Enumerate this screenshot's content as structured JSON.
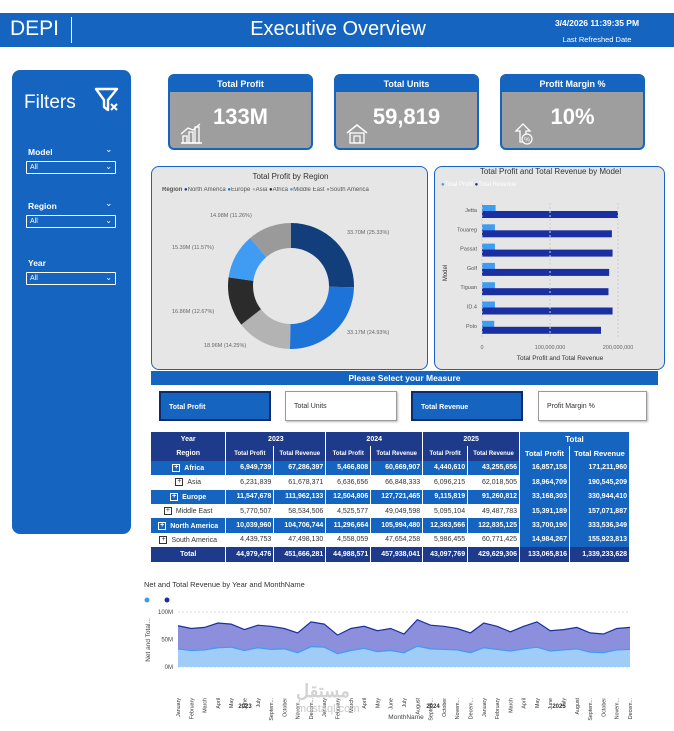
{
  "header": {
    "brand": "DEPI",
    "title": "Executive Overview",
    "refresh_time": "3/4/2026 11:39:35 PM",
    "refresh_label": "Last Refreshed Date"
  },
  "filters": {
    "title": "Filters",
    "items": [
      {
        "label": "Model",
        "value": "All"
      },
      {
        "label": "Region",
        "value": "All"
      },
      {
        "label": "Year",
        "value": "All"
      }
    ]
  },
  "kpis": [
    {
      "label": "Total Profit",
      "value": "133M",
      "icon": "bar-chart-icon"
    },
    {
      "label": "Total Units",
      "value": "59,819",
      "icon": "house-icon"
    },
    {
      "label": "Profit Margin %",
      "value": "10%",
      "icon": "growth-percent-icon"
    }
  ],
  "donut": {
    "title": "Total Profit by Region",
    "legend_title": "Region",
    "slice_labels": [
      "33.70M (25.33%)",
      "33.17M (24.93%)",
      "18.96M (14.25%)",
      "16.86M (12.67%)",
      "15.39M (11.57%)",
      "14.98M (11.26%)"
    ]
  },
  "bars": {
    "title": "Total Profit and Total Revenue by Model",
    "y_axis_label": "Model",
    "x_axis_label": "Total Profit and Total Revenue",
    "x_ticks": [
      "0",
      "100,000,000",
      "200,000,000"
    ],
    "legend": [
      "Total Profit",
      "Total Revenue"
    ]
  },
  "measure": {
    "title": "Please Select your Measure",
    "buttons": [
      {
        "label": "Total Profit",
        "selected": true
      },
      {
        "label": "Total Units",
        "selected": false
      },
      {
        "label": "Total Revenue",
        "selected": true
      },
      {
        "label": "Profit Margin %",
        "selected": false
      }
    ]
  },
  "matrix": {
    "col_year": "Year",
    "col_region": "Region",
    "years": [
      "2023",
      "2024",
      "2025"
    ],
    "total_label": "Total",
    "sub_headers": [
      "Total Profit",
      "Total Revenue"
    ],
    "rows": [
      {
        "region": "Africa",
        "v": [
          "6,949,739",
          "67,286,397",
          "5,466,808",
          "60,669,907",
          "4,440,610",
          "43,255,656",
          "16,857,158",
          "171,211,960"
        ]
      },
      {
        "region": "Asia",
        "v": [
          "6,231,839",
          "61,678,371",
          "6,636,656",
          "66,848,333",
          "6,096,215",
          "62,018,505",
          "18,964,709",
          "190,545,209"
        ]
      },
      {
        "region": "Europe",
        "v": [
          "11,547,678",
          "111,962,133",
          "12,504,806",
          "127,721,465",
          "9,115,819",
          "91,260,812",
          "33,168,303",
          "330,944,410"
        ]
      },
      {
        "region": "Middle East",
        "v": [
          "5,770,507",
          "58,534,506",
          "4,525,577",
          "49,049,598",
          "5,095,104",
          "49,487,783",
          "15,391,189",
          "157,071,887"
        ]
      },
      {
        "region": "North America",
        "v": [
          "10,039,960",
          "104,706,744",
          "11,296,664",
          "105,994,480",
          "12,363,566",
          "122,835,125",
          "33,700,190",
          "333,536,349"
        ]
      },
      {
        "region": "South America",
        "v": [
          "4,439,753",
          "47,498,130",
          "4,558,059",
          "47,654,258",
          "5,986,455",
          "60,771,425",
          "14,984,267",
          "155,923,813"
        ]
      }
    ],
    "total_row": {
      "label": "Total",
      "v": [
        "44,979,476",
        "451,666,281",
        "44,988,571",
        "457,938,041",
        "43,097,769",
        "429,629,306",
        "133,065,816",
        "1,339,233,628"
      ]
    }
  },
  "line_chart": {
    "title": "Net and Total Revenue by Year and MonthName",
    "y_axis_label": "Net and Total...",
    "x_axis_label": "MonthName",
    "y_ticks": [
      "100M",
      "50M",
      "0M"
    ],
    "year_labels": [
      "2023",
      "2024",
      "2025"
    ],
    "months": [
      "January",
      "February",
      "March",
      "April",
      "May",
      "June",
      "July",
      "Septem...",
      "October",
      "Novem...",
      "Decem..."
    ]
  },
  "watermark": {
    "logo": "مستقل",
    "text": "mostaql.com"
  },
  "chart_data": [
    {
      "type": "pie",
      "title": "Total Profit by Region",
      "legend_title": "Region",
      "categories": [
        "North America",
        "Europe",
        "Asia",
        "Africa",
        "Middle East",
        "South America"
      ],
      "values": [
        33.7,
        33.17,
        18.96,
        16.86,
        15.39,
        14.98
      ],
      "percent": [
        25.33,
        24.93,
        14.25,
        12.67,
        11.57,
        11.26
      ],
      "unit": "M",
      "colors": [
        "#123e7c",
        "#1e73d8",
        "#b3b3b3",
        "#2b2b2b",
        "#3f9cf2",
        "#9a9a9a"
      ],
      "legend_position": "top"
    },
    {
      "type": "bar",
      "title": "Total Profit and Total Revenue by Model",
      "categories": [
        "Jetta",
        "Touareg",
        "Passat",
        "Golf",
        "Tiguan",
        "ID.4",
        "Polo"
      ],
      "series": [
        {
          "name": "Total Profit",
          "values": [
            20000000,
            19000000,
            19000000,
            19000000,
            19000000,
            19000000,
            18000000
          ],
          "color": "#3f9cf2"
        },
        {
          "name": "Total Revenue",
          "values": [
            200000000,
            191000000,
            192000000,
            187000000,
            186000000,
            192000000,
            175000000
          ],
          "color": "#1a2fa0"
        }
      ],
      "xlabel": "Total Profit and Total Revenue",
      "ylabel": "Model",
      "xlim": [
        0,
        250000000
      ],
      "legend_position": "top-left"
    },
    {
      "type": "area",
      "title": "Net and Total Revenue by Year and MonthName",
      "x": [
        "January",
        "February",
        "March",
        "April",
        "May",
        "June",
        "July",
        "Septem...",
        "October",
        "Novem...",
        "Decem...",
        "January",
        "February",
        "March",
        "April",
        "May",
        "June",
        "July",
        "August",
        "Septem...",
        "October",
        "Novem...",
        "Decem...",
        "January",
        "February",
        "March",
        "April",
        "May",
        "June",
        "July",
        "August",
        "Septem...",
        "October",
        "Novem...",
        "Decem..."
      ],
      "series": [
        {
          "name": "",
          "values": [
            75,
            70,
            72,
            80,
            78,
            68,
            76,
            74,
            70,
            62,
            82,
            78,
            58,
            70,
            74,
            66,
            70,
            60,
            86,
            76,
            74,
            70,
            62,
            80,
            74,
            64,
            74,
            82,
            66,
            68,
            72,
            62,
            60,
            70,
            72
          ],
          "color": "#1a2fa0"
        },
        {
          "name": "",
          "values": [
            33,
            30,
            31,
            35,
            36,
            30,
            35,
            32,
            33,
            26,
            37,
            36,
            24,
            30,
            34,
            28,
            30,
            26,
            38,
            33,
            32,
            31,
            26,
            35,
            32,
            29,
            33,
            36,
            29,
            31,
            33,
            27,
            26,
            31,
            32
          ],
          "color": "#3f9cf2"
        }
      ],
      "ylabel": "Net and Total...",
      "xlabel": "MonthName",
      "ylim": [
        0,
        100
      ],
      "grid": true
    }
  ]
}
